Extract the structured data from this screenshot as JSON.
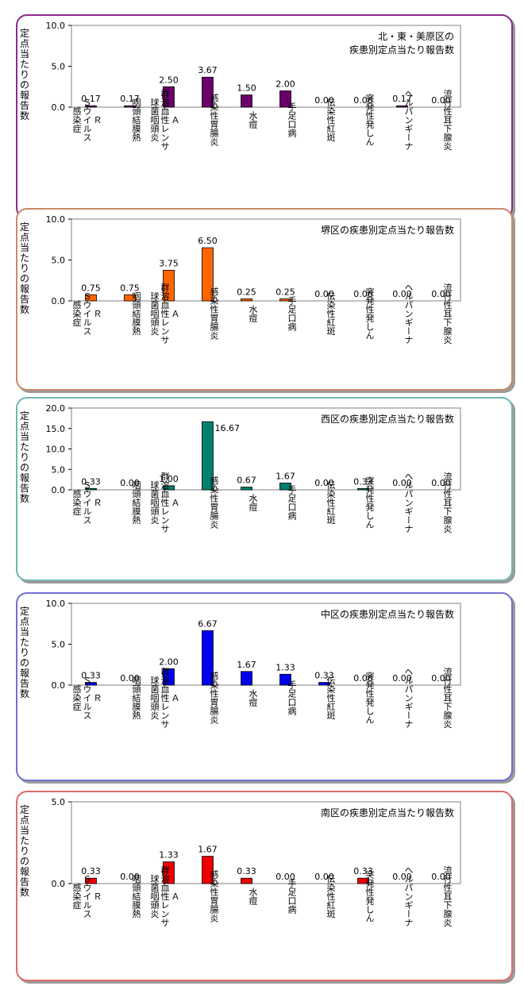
{
  "y_axis_label": "定点当たりの報告数",
  "categories": [
    [
      "Ｒ",
      "Ｓウイルス",
      "感染症"
    ],
    [
      "咽頭結膜熱"
    ],
    [
      "Ａ",
      "群溶血性レンサ",
      "球菌咽頭炎"
    ],
    [
      "感染性胃腸炎"
    ],
    [
      "水痘"
    ],
    [
      "手足口病"
    ],
    [
      "伝染性紅斑"
    ],
    [
      "突発性発しん"
    ],
    [
      "ヘルパンギーナ"
    ],
    [
      "流行性耳下腺炎"
    ]
  ],
  "chart_data": [
    {
      "type": "bar",
      "title": "北・東・美原区の\n疾患別定点当たり報告数",
      "color": "#6b006b",
      "ylim": [
        0,
        10
      ],
      "yticks": [
        "0.0",
        "5.0",
        "10.0"
      ],
      "values": [
        0.17,
        0.17,
        2.5,
        3.67,
        1.5,
        2.0,
        0.0,
        0.0,
        0.17,
        0.0
      ],
      "labels": [
        "0.17",
        "0.17",
        "2.50",
        "3.67",
        "1.50",
        "2.00",
        "0.00",
        "0.00",
        "0.17",
        "0.00"
      ],
      "border_color": "#8a2b8f"
    },
    {
      "type": "bar",
      "title": "堺区の疾患別定点当たり報告数",
      "color": "#ff6600",
      "ylim": [
        0,
        10
      ],
      "yticks": [
        "0.0",
        "5.0",
        "10.0"
      ],
      "values": [
        0.75,
        0.75,
        3.75,
        6.5,
        0.25,
        0.25,
        0.0,
        0.0,
        0.0,
        0.0
      ],
      "labels": [
        "0.75",
        "0.75",
        "3.75",
        "6.50",
        "0.25",
        "0.25",
        "0.00",
        "0.00",
        "0.00",
        "0.00"
      ],
      "border_color": "#c98a6a"
    },
    {
      "type": "bar",
      "title": "西区の疾患別定点当たり報告数",
      "color": "#008070",
      "ylim": [
        0,
        20
      ],
      "yticks": [
        "0.0",
        "5.0",
        "10.0",
        "15.0",
        "20.0"
      ],
      "values": [
        0.33,
        0.0,
        1.0,
        16.67,
        0.67,
        1.67,
        0.0,
        0.33,
        0.0,
        0.0
      ],
      "labels": [
        "0.33",
        "0.00",
        "1.00",
        "16.67",
        "0.67",
        "1.67",
        "0.00",
        "0.33",
        "0.00",
        "0.00"
      ],
      "border_color": "#6fb7b0"
    },
    {
      "type": "bar",
      "title": "中区の疾患別定点当たり報告数",
      "color": "#0000ee",
      "ylim": [
        0,
        10
      ],
      "yticks": [
        "0.0",
        "5.0",
        "10.0"
      ],
      "values": [
        0.33,
        0.0,
        2.0,
        6.67,
        1.67,
        1.33,
        0.33,
        0.0,
        0.0,
        0.0
      ],
      "labels": [
        "0.33",
        "0.00",
        "2.00",
        "6.67",
        "1.67",
        "1.33",
        "0.33",
        "0.00",
        "0.00",
        "0.00"
      ],
      "border_color": "#7070d0"
    },
    {
      "type": "bar",
      "title": "南区の疾患別定点当たり報告数",
      "color": "#ee0000",
      "ylim": [
        0,
        5
      ],
      "yticks": [
        "0.0",
        "5.0"
      ],
      "values": [
        0.33,
        0.0,
        1.33,
        1.67,
        0.33,
        0.0,
        0.0,
        0.33,
        0.0,
        0.0
      ],
      "labels": [
        "0.33",
        "0.00",
        "1.33",
        "1.67",
        "0.33",
        "0.00",
        "0.00",
        "0.33",
        "0.00",
        "0.00"
      ],
      "border_color": "#e06a6a"
    }
  ]
}
